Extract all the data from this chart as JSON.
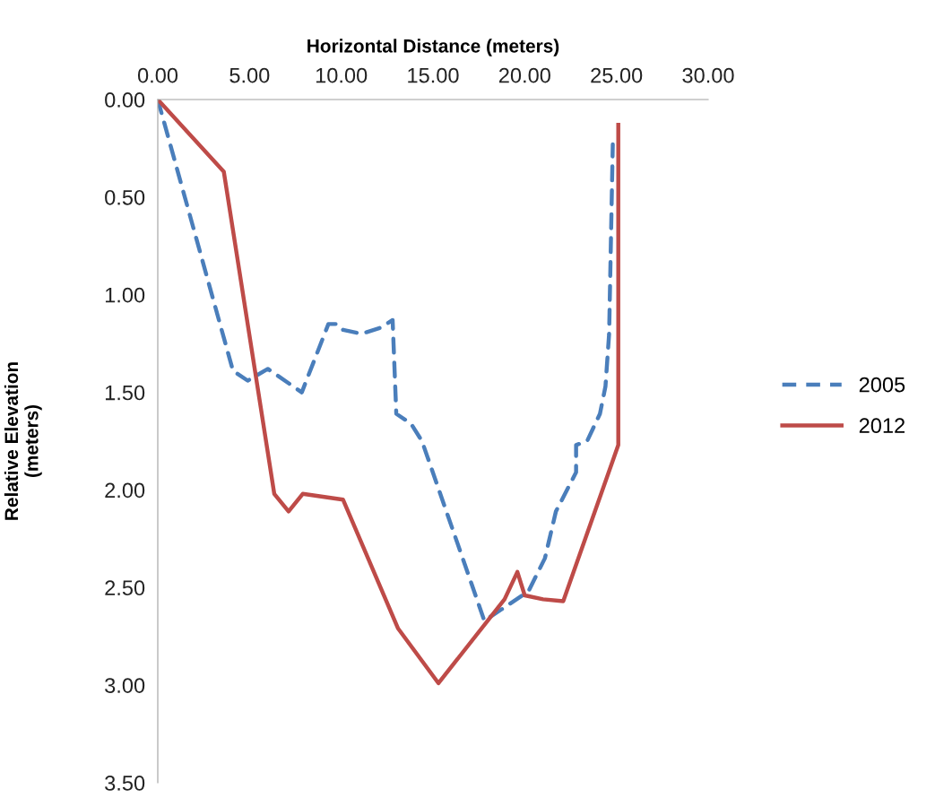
{
  "chart_data": {
    "type": "line",
    "xlabel": "Horizontal Distance (meters)",
    "ylabel": "Relative Elevation\n(meters)",
    "xlim": [
      0,
      30
    ],
    "ylim": [
      3.5,
      0
    ],
    "xticks": [
      {
        "value": 0,
        "label": "0.00"
      },
      {
        "value": 5,
        "label": "5.00"
      },
      {
        "value": 10,
        "label": "10.00"
      },
      {
        "value": 15,
        "label": "15.00"
      },
      {
        "value": 20,
        "label": "20.00"
      },
      {
        "value": 25,
        "label": "25.00"
      },
      {
        "value": 30,
        "label": "30.00"
      }
    ],
    "yticks": [
      {
        "value": 0,
        "label": "0.00"
      },
      {
        "value": 0.5,
        "label": "0.50"
      },
      {
        "value": 1,
        "label": "1.00"
      },
      {
        "value": 1.5,
        "label": "1.50"
      },
      {
        "value": 2,
        "label": "2.00"
      },
      {
        "value": 2.5,
        "label": "2.50"
      },
      {
        "value": 3,
        "label": "3.00"
      },
      {
        "value": 3.5,
        "label": "3.50"
      }
    ],
    "legend": "right",
    "grid": false,
    "marker": "none",
    "series": [
      {
        "name": "2005",
        "color": "#4a7ebb",
        "line_style": "dashed",
        "x": [
          0,
          4.1,
          4.9,
          6.0,
          7.85,
          9.3,
          9.8,
          10.1,
          11.1,
          12.1,
          12.8,
          13.0,
          13.8,
          14.4,
          17.8,
          20.2,
          21.1,
          21.7,
          22.8,
          22.8,
          23.4,
          24.1,
          24.4,
          24.6,
          24.8
        ],
        "values": [
          0,
          1.39,
          1.44,
          1.38,
          1.5,
          1.15,
          1.15,
          1.18,
          1.2,
          1.17,
          1.13,
          1.61,
          1.66,
          1.75,
          2.67,
          2.52,
          2.35,
          2.11,
          1.91,
          1.77,
          1.75,
          1.61,
          1.47,
          1.2,
          0.23
        ]
      },
      {
        "name": "2012",
        "color": "#be4b48",
        "line_style": "solid",
        "x": [
          0,
          3.6,
          6.35,
          7.13,
          7.9,
          10.1,
          13.1,
          15.3,
          18.9,
          19.6,
          20.0,
          21.0,
          22.1,
          25.1,
          25.1
        ],
        "values": [
          0,
          0.37,
          2.02,
          2.11,
          2.02,
          2.05,
          2.71,
          2.99,
          2.56,
          2.42,
          2.54,
          2.56,
          2.57,
          1.77,
          0.13
        ]
      }
    ]
  }
}
